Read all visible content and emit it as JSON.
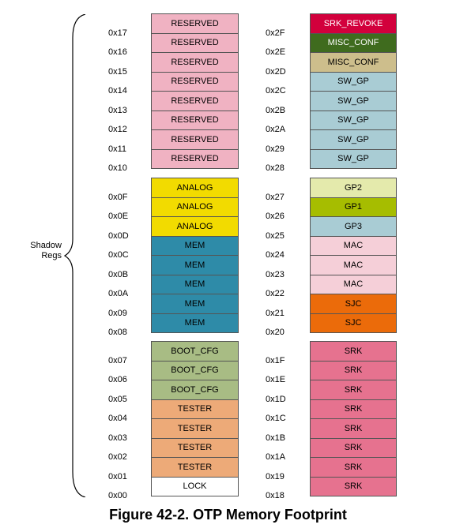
{
  "shadow_label": [
    "Shadow",
    "Regs"
  ],
  "caption": "Figure 42-2. OTP Memory Footprint",
  "left_column": [
    {
      "addr": "0x17",
      "label": "RESERVED",
      "color": "#F0B2C2"
    },
    {
      "addr": "0x16",
      "label": "RESERVED",
      "color": "#F0B2C2"
    },
    {
      "addr": "0x15",
      "label": "RESERVED",
      "color": "#F0B2C2"
    },
    {
      "addr": "0x14",
      "label": "RESERVED",
      "color": "#F0B2C2"
    },
    {
      "addr": "0x13",
      "label": "RESERVED",
      "color": "#F0B2C2"
    },
    {
      "addr": "0x12",
      "label": "RESERVED",
      "color": "#F0B2C2"
    },
    {
      "addr": "0x11",
      "label": "RESERVED",
      "color": "#F0B2C2"
    },
    {
      "addr": "0x10",
      "label": "RESERVED",
      "color": "#F0B2C2"
    },
    {
      "addr": "0x0F",
      "label": "ANALOG",
      "color": "#F2DB00"
    },
    {
      "addr": "0x0E",
      "label": "ANALOG",
      "color": "#F2DB00"
    },
    {
      "addr": "0x0D",
      "label": "ANALOG",
      "color": "#F2DB00"
    },
    {
      "addr": "0x0C",
      "label": "MEM",
      "color": "#2E8BA8"
    },
    {
      "addr": "0x0B",
      "label": "MEM",
      "color": "#2E8BA8"
    },
    {
      "addr": "0x0A",
      "label": "MEM",
      "color": "#2E8BA8"
    },
    {
      "addr": "0x09",
      "label": "MEM",
      "color": "#2E8BA8"
    },
    {
      "addr": "0x08",
      "label": "MEM",
      "color": "#2E8BA8"
    },
    {
      "addr": "0x07",
      "label": "BOOT_CFG",
      "color": "#A8BC84"
    },
    {
      "addr": "0x06",
      "label": "BOOT_CFG",
      "color": "#A8BC84"
    },
    {
      "addr": "0x05",
      "label": "BOOT_CFG",
      "color": "#A8BC84"
    },
    {
      "addr": "0x04",
      "label": "TESTER",
      "color": "#EDAA78"
    },
    {
      "addr": "0x03",
      "label": "TESTER",
      "color": "#EDAA78"
    },
    {
      "addr": "0x02",
      "label": "TESTER",
      "color": "#EDAA78"
    },
    {
      "addr": "0x01",
      "label": "TESTER",
      "color": "#EDAA78"
    },
    {
      "addr": "0x00",
      "label": "LOCK",
      "color": "#FFFFFF"
    }
  ],
  "right_column": [
    {
      "addr": "0x2F",
      "label": "SRK_REVOKE",
      "color": "#D2003C",
      "text_color": "#FFFFFF"
    },
    {
      "addr": "0x2E",
      "label": "MISC_CONF",
      "color": "#3F6B1E",
      "text_color": "#FFFFFF"
    },
    {
      "addr": "0x2D",
      "label": "MISC_CONF",
      "color": "#CDBE8C"
    },
    {
      "addr": "0x2C",
      "label": "SW_GP",
      "color": "#A9CCD4"
    },
    {
      "addr": "0x2B",
      "label": "SW_GP",
      "color": "#A9CCD4"
    },
    {
      "addr": "0x2A",
      "label": "SW_GP",
      "color": "#A9CCD4"
    },
    {
      "addr": "0x29",
      "label": "SW_GP",
      "color": "#A9CCD4"
    },
    {
      "addr": "0x28",
      "label": "SW_GP",
      "color": "#A9CCD4"
    },
    {
      "addr": "0x27",
      "label": "GP2",
      "color": "#E4EAAC"
    },
    {
      "addr": "0x26",
      "label": "GP1",
      "color": "#A6BD00"
    },
    {
      "addr": "0x25",
      "label": "GP3",
      "color": "#A9CCD4"
    },
    {
      "addr": "0x24",
      "label": "MAC",
      "color": "#F5CFD8"
    },
    {
      "addr": "0x23",
      "label": "MAC",
      "color": "#F5CFD8"
    },
    {
      "addr": "0x22",
      "label": "MAC",
      "color": "#F5CFD8"
    },
    {
      "addr": "0x21",
      "label": "SJC",
      "color": "#EB6B0A"
    },
    {
      "addr": "0x20",
      "label": "SJC",
      "color": "#EB6B0A"
    },
    {
      "addr": "0x1F",
      "label": "SRK",
      "color": "#E6728F"
    },
    {
      "addr": "0x1E",
      "label": "SRK",
      "color": "#E6728F"
    },
    {
      "addr": "0x1D",
      "label": "SRK",
      "color": "#E6728F"
    },
    {
      "addr": "0x1C",
      "label": "SRK",
      "color": "#E6728F"
    },
    {
      "addr": "0x1B",
      "label": "SRK",
      "color": "#E6728F"
    },
    {
      "addr": "0x1A",
      "label": "SRK",
      "color": "#E6728F"
    },
    {
      "addr": "0x19",
      "label": "SRK",
      "color": "#E6728F"
    },
    {
      "addr": "0x18",
      "label": "SRK",
      "color": "#E6728F"
    }
  ]
}
